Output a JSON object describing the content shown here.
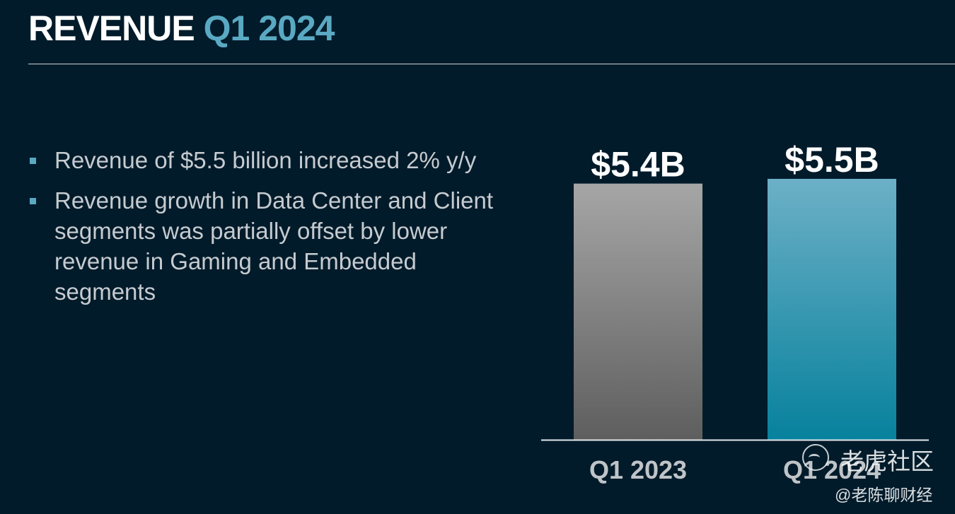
{
  "slide": {
    "title_main": "REVENUE",
    "title_accent": "Q1 2024",
    "bullets": [
      "Revenue of $5.5 billion increased 2% y/y",
      "Revenue growth in Data Center and Client segments was partially offset by lower revenue in Gaming and Embedded segments"
    ]
  },
  "colors": {
    "background": "#011b2a",
    "accent": "#5aa9c3",
    "bar_q1_2023_top": "#a6a6a6",
    "bar_q1_2023_bottom": "#5e5e5e",
    "bar_q1_2024_top": "#6cb0c6",
    "bar_q1_2024_bottom": "#07819d"
  },
  "chart_data": {
    "type": "bar",
    "categories": [
      "Q1 2023",
      "Q1 2024"
    ],
    "values": [
      5.4,
      5.5
    ],
    "data_labels": [
      "$5.4B",
      "$5.5B"
    ],
    "unit": "billion USD",
    "title": "",
    "xlabel": "",
    "ylabel": "",
    "grid": false,
    "legend": "none"
  },
  "watermark": {
    "site": "老虎社区",
    "handle": "@老陈聊财经"
  }
}
